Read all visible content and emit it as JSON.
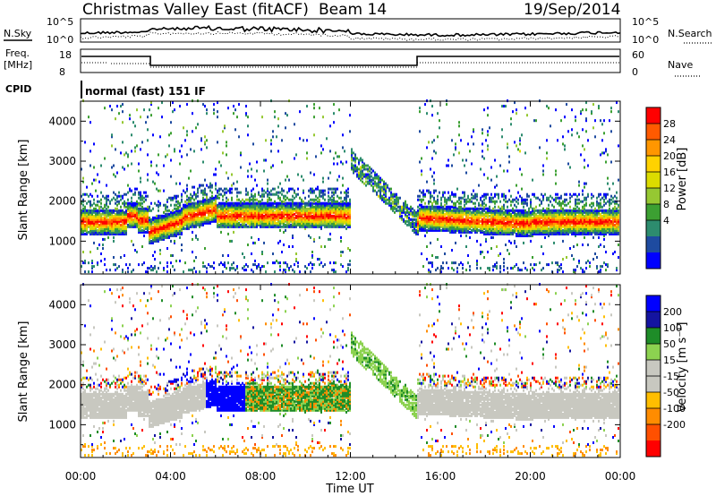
{
  "header": {
    "title": "Christmas Valley East (fitACF)",
    "beam": "Beam 14",
    "date": "19/Sep/2014"
  },
  "top_panels": {
    "nsky_label": "N.Sky",
    "nsearch_label": "N.Search",
    "noise_ticks": [
      "10^5",
      "10^0"
    ],
    "freq_label": "Freq.",
    "freq_unit": "[MHz]",
    "freq_ticks": [
      "18",
      "8"
    ],
    "nave_label": "Nave",
    "nave_ticks": [
      "60",
      "0"
    ],
    "cpid_label": "CPID",
    "cpid_text": "normal (fast) 151 IF"
  },
  "chart_data": [
    {
      "type": "heatmap",
      "name": "power",
      "ylabel": "Slant Range [km]",
      "ylim": [
        180,
        4500
      ],
      "yticks": [
        1000,
        2000,
        3000,
        4000
      ],
      "xticks": [
        "00:00",
        "04:00",
        "08:00",
        "12:00",
        "16:00",
        "20:00",
        "00:00"
      ],
      "colorbar": {
        "label": "Power [dB]",
        "tick_labels": [
          "28",
          "24",
          "20",
          "16",
          "12",
          "8",
          "4"
        ],
        "colors": [
          "#ff0000",
          "#ff5a00",
          "#ff9600",
          "#ffd200",
          "#dcdc00",
          "#96c832",
          "#3ca032",
          "#2d8c6e",
          "#1e4ba0",
          "#0000ff"
        ]
      }
    },
    {
      "type": "heatmap",
      "name": "velocity",
      "ylabel": "Slant Range [km]",
      "ylim": [
        180,
        4500
      ],
      "yticks": [
        1000,
        2000,
        3000,
        4000
      ],
      "xticks": [
        "00:00",
        "04:00",
        "08:00",
        "12:00",
        "16:00",
        "20:00",
        "00:00"
      ],
      "xlabel": "Time UT",
      "colorbar": {
        "label": "Velocity [m s⁻¹]",
        "tick_labels": [
          "200",
          "100",
          "50",
          "15",
          "-15",
          "-50",
          "-100",
          "-200"
        ],
        "colors": [
          "#0000ff",
          "#1414a0",
          "#1e8c28",
          "#8cd250",
          "#c8c8c0",
          "#c8c8c0",
          "#ffbe00",
          "#ff8c00",
          "#ff5000",
          "#ff0000"
        ]
      }
    }
  ]
}
